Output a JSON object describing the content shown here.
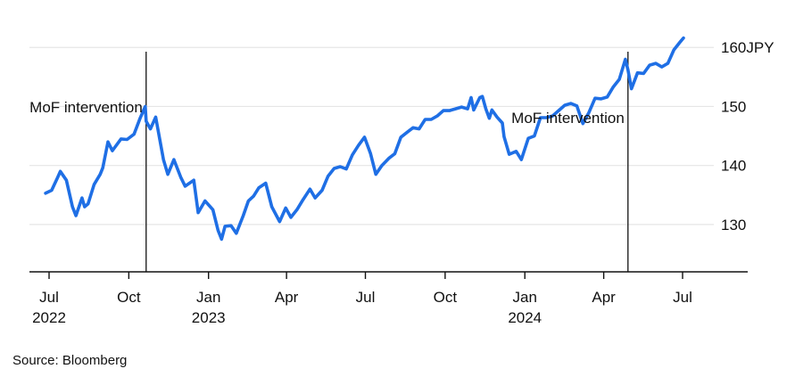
{
  "source": "Source: Bloomberg",
  "colors": {
    "line": "#1f6fe5",
    "grid": "#e6e6e6",
    "axis": "#111111",
    "marker": "#111111"
  },
  "chart_data": {
    "type": "line",
    "title": "",
    "xlabel": "",
    "ylabel": "",
    "y_unit": "JPY",
    "ylim": [
      125,
      162
    ],
    "grid": true,
    "y_ticks": [
      {
        "value": 160,
        "label": "160JPY"
      },
      {
        "value": 150,
        "label": "150"
      },
      {
        "value": 140,
        "label": "140"
      },
      {
        "value": 130,
        "label": "130"
      }
    ],
    "x_ticks": [
      {
        "date": "2022-07-01",
        "label": "Jul",
        "year": "2022"
      },
      {
        "date": "2022-10-01",
        "label": "Oct",
        "year": ""
      },
      {
        "date": "2023-01-01",
        "label": "Jan",
        "year": "2023"
      },
      {
        "date": "2023-04-01",
        "label": "Apr",
        "year": ""
      },
      {
        "date": "2023-07-01",
        "label": "Jul",
        "year": ""
      },
      {
        "date": "2023-10-01",
        "label": "Oct",
        "year": ""
      },
      {
        "date": "2024-01-01",
        "label": "Jan",
        "year": "2024"
      },
      {
        "date": "2024-04-01",
        "label": "Apr",
        "year": ""
      },
      {
        "date": "2024-07-01",
        "label": "Jul",
        "year": ""
      }
    ],
    "xlim": [
      "2022-06-24",
      "2024-09-15"
    ],
    "annotations": [
      {
        "date": "2022-10-21",
        "label": "MoF intervention",
        "label_side": "left"
      },
      {
        "date": "2024-04-29",
        "label": "MoF intervention",
        "label_side": "left"
      }
    ],
    "series": [
      {
        "points": [
          [
            "2022-06-27",
            135.3
          ],
          [
            "2022-07-04",
            135.8
          ],
          [
            "2022-07-11",
            138.0
          ],
          [
            "2022-07-14",
            139.0
          ],
          [
            "2022-07-21",
            137.5
          ],
          [
            "2022-07-28",
            133.0
          ],
          [
            "2022-08-01",
            131.5
          ],
          [
            "2022-08-08",
            134.5
          ],
          [
            "2022-08-11",
            133.0
          ],
          [
            "2022-08-15",
            133.5
          ],
          [
            "2022-08-22",
            136.8
          ],
          [
            "2022-08-29",
            138.5
          ],
          [
            "2022-09-01",
            139.6
          ],
          [
            "2022-09-07",
            144.0
          ],
          [
            "2022-09-12",
            142.5
          ],
          [
            "2022-09-22",
            144.5
          ],
          [
            "2022-09-29",
            144.4
          ],
          [
            "2022-10-07",
            145.3
          ],
          [
            "2022-10-14",
            148.0
          ],
          [
            "2022-10-20",
            150.0
          ],
          [
            "2022-10-21",
            147.5
          ],
          [
            "2022-10-26",
            146.2
          ],
          [
            "2022-11-01",
            148.2
          ],
          [
            "2022-11-10",
            141.0
          ],
          [
            "2022-11-15",
            138.5
          ],
          [
            "2022-11-22",
            141.0
          ],
          [
            "2022-11-30",
            138.0
          ],
          [
            "2022-12-05",
            136.5
          ],
          [
            "2022-12-15",
            137.5
          ],
          [
            "2022-12-20",
            132.0
          ],
          [
            "2022-12-28",
            134.0
          ],
          [
            "2023-01-06",
            132.5
          ],
          [
            "2023-01-12",
            129.0
          ],
          [
            "2023-01-16",
            127.5
          ],
          [
            "2023-01-20",
            129.7
          ],
          [
            "2023-01-27",
            129.8
          ],
          [
            "2023-02-02",
            128.5
          ],
          [
            "2023-02-10",
            131.5
          ],
          [
            "2023-02-16",
            134.0
          ],
          [
            "2023-02-22",
            134.8
          ],
          [
            "2023-02-28",
            136.2
          ],
          [
            "2023-03-08",
            137.0
          ],
          [
            "2023-03-15",
            133.0
          ],
          [
            "2023-03-24",
            130.5
          ],
          [
            "2023-03-31",
            132.8
          ],
          [
            "2023-04-06",
            131.2
          ],
          [
            "2023-04-13",
            132.5
          ],
          [
            "2023-04-20",
            134.2
          ],
          [
            "2023-04-28",
            136.0
          ],
          [
            "2023-05-04",
            134.5
          ],
          [
            "2023-05-12",
            135.8
          ],
          [
            "2023-05-19",
            138.2
          ],
          [
            "2023-05-26",
            139.5
          ],
          [
            "2023-06-02",
            139.8
          ],
          [
            "2023-06-09",
            139.4
          ],
          [
            "2023-06-16",
            141.8
          ],
          [
            "2023-06-23",
            143.4
          ],
          [
            "2023-06-30",
            144.8
          ],
          [
            "2023-07-07",
            142.0
          ],
          [
            "2023-07-13",
            138.5
          ],
          [
            "2023-07-20",
            140.0
          ],
          [
            "2023-07-28",
            141.2
          ],
          [
            "2023-08-04",
            142.0
          ],
          [
            "2023-08-11",
            144.8
          ],
          [
            "2023-08-18",
            145.6
          ],
          [
            "2023-08-25",
            146.4
          ],
          [
            "2023-09-01",
            146.2
          ],
          [
            "2023-09-08",
            147.8
          ],
          [
            "2023-09-15",
            147.8
          ],
          [
            "2023-09-22",
            148.4
          ],
          [
            "2023-09-29",
            149.3
          ],
          [
            "2023-10-06",
            149.3
          ],
          [
            "2023-10-13",
            149.6
          ],
          [
            "2023-10-20",
            149.9
          ],
          [
            "2023-10-27",
            149.6
          ],
          [
            "2023-10-31",
            151.5
          ],
          [
            "2023-11-03",
            149.4
          ],
          [
            "2023-11-10",
            151.5
          ],
          [
            "2023-11-13",
            151.7
          ],
          [
            "2023-11-17",
            149.6
          ],
          [
            "2023-11-21",
            148.0
          ],
          [
            "2023-11-24",
            149.4
          ],
          [
            "2023-11-30",
            148.2
          ],
          [
            "2023-12-06",
            147.2
          ],
          [
            "2023-12-08",
            144.9
          ],
          [
            "2023-12-14",
            141.9
          ],
          [
            "2023-12-22",
            142.4
          ],
          [
            "2023-12-28",
            141.0
          ],
          [
            "2024-01-05",
            144.6
          ],
          [
            "2024-01-12",
            145.0
          ],
          [
            "2024-01-19",
            148.1
          ],
          [
            "2024-01-26",
            148.1
          ],
          [
            "2024-02-02",
            148.4
          ],
          [
            "2024-02-09",
            149.3
          ],
          [
            "2024-02-16",
            150.2
          ],
          [
            "2024-02-23",
            150.5
          ],
          [
            "2024-03-01",
            150.1
          ],
          [
            "2024-03-08",
            147.1
          ],
          [
            "2024-03-15",
            149.0
          ],
          [
            "2024-03-22",
            151.4
          ],
          [
            "2024-03-29",
            151.3
          ],
          [
            "2024-04-05",
            151.6
          ],
          [
            "2024-04-12",
            153.3
          ],
          [
            "2024-04-19",
            154.6
          ],
          [
            "2024-04-26",
            158.0
          ],
          [
            "2024-04-29",
            156.2
          ],
          [
            "2024-05-03",
            153.0
          ],
          [
            "2024-05-10",
            155.7
          ],
          [
            "2024-05-17",
            155.6
          ],
          [
            "2024-05-24",
            157.0
          ],
          [
            "2024-05-31",
            157.3
          ],
          [
            "2024-06-07",
            156.7
          ],
          [
            "2024-06-14",
            157.3
          ],
          [
            "2024-06-21",
            159.6
          ],
          [
            "2024-06-28",
            160.9
          ],
          [
            "2024-07-02",
            161.6
          ]
        ]
      }
    ]
  }
}
